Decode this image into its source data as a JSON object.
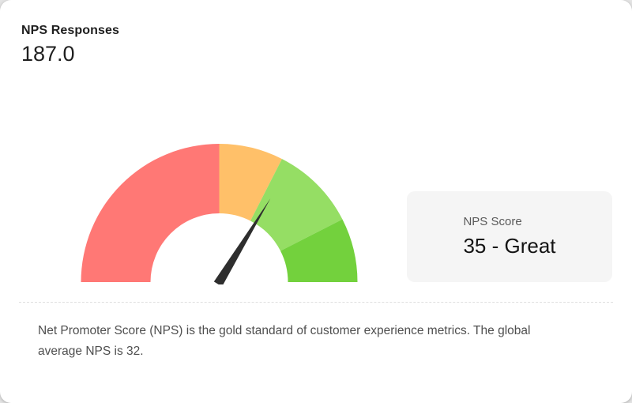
{
  "header": {
    "title": "NPS Responses",
    "value": "187.0"
  },
  "score_card": {
    "label": "NPS Score",
    "value": "35 - Great"
  },
  "description": {
    "text": "Net Promoter Score (NPS) is the gold standard of customer experience metrics. The global average NPS is 32."
  },
  "colors": {
    "segment_red": "#ff7875",
    "segment_orange": "#ffc069",
    "segment_light_green": "#95de64",
    "segment_dark_green": "#73d13d",
    "needle": "#2e2e2e",
    "score_card_bg": "#f5f5f5",
    "text_primary": "#1f1f1f",
    "text_secondary": "#595959"
  },
  "chart_data": {
    "type": "gauge",
    "title": "NPS Score",
    "min": -100,
    "max": 100,
    "value": 35,
    "value_label": "35 - Great",
    "needle_color": "#2e2e2e",
    "segments": [
      {
        "from": -100,
        "to": 0,
        "color": "#ff7875"
      },
      {
        "from": 0,
        "to": 30,
        "color": "#ffc069"
      },
      {
        "from": 30,
        "to": 70,
        "color": "#95de64"
      },
      {
        "from": 70,
        "to": 100,
        "color": "#73d13d"
      }
    ]
  }
}
